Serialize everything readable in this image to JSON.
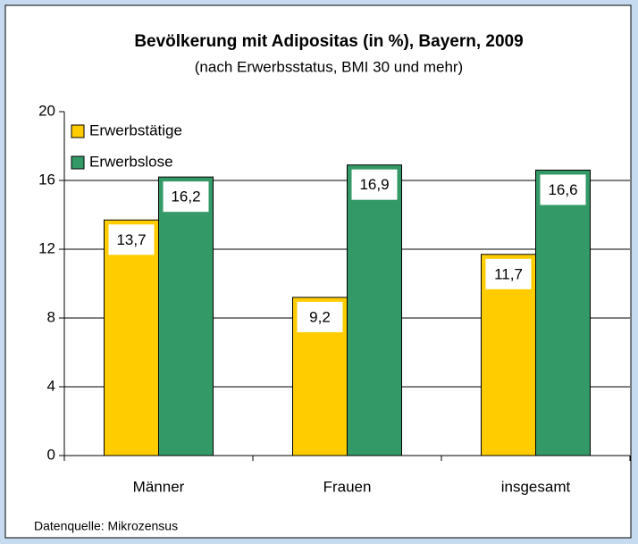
{
  "chart_data": {
    "type": "bar",
    "title": "Bevölkerung mit Adipositas (in %), Bayern, 2009",
    "subtitle": "(nach Erwerbsstatus, BMI 30 und mehr)",
    "categories": [
      "Männer",
      "Frauen",
      "insgesamt"
    ],
    "series": [
      {
        "name": "Erwerbstätige",
        "color": "#ffcc00",
        "values": [
          13.7,
          9.2,
          11.7
        ],
        "value_labels": [
          "13,7",
          "9,2",
          "11,7"
        ]
      },
      {
        "name": "Erwerbslose",
        "color": "#339966",
        "values": [
          16.2,
          16.9,
          16.6
        ],
        "value_labels": [
          "16,2",
          "16,9",
          "16,6"
        ]
      }
    ],
    "ylim": [
      0,
      20
    ],
    "yticks": [
      0,
      4,
      8,
      12,
      16,
      20
    ],
    "grid": true,
    "legend": "top-left",
    "source": "Datenquelle: Mikrozensus"
  }
}
